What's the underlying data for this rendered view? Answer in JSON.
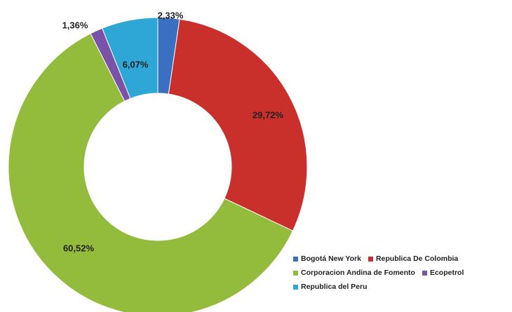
{
  "chart_data": {
    "type": "pie",
    "donut": true,
    "title": "",
    "legend_position": "bottom-right",
    "series": [
      {
        "name": "Bogotá New York",
        "value": 2.33,
        "label": "2,33%",
        "color": "#3a6fc2"
      },
      {
        "name": "Republica De Colombia",
        "value": 29.72,
        "label": "29,72%",
        "color": "#c9302c"
      },
      {
        "name": "Corporacion Andina de Fomento",
        "value": 60.52,
        "label": "60,52%",
        "color": "#93bb3c"
      },
      {
        "name": "Ecopetrol",
        "value": 1.36,
        "label": "1,36%",
        "color": "#7a52a8"
      },
      {
        "name": "Republica del Peru",
        "value": 6.07,
        "label": "6,07%",
        "color": "#2ea7d6"
      }
    ]
  }
}
